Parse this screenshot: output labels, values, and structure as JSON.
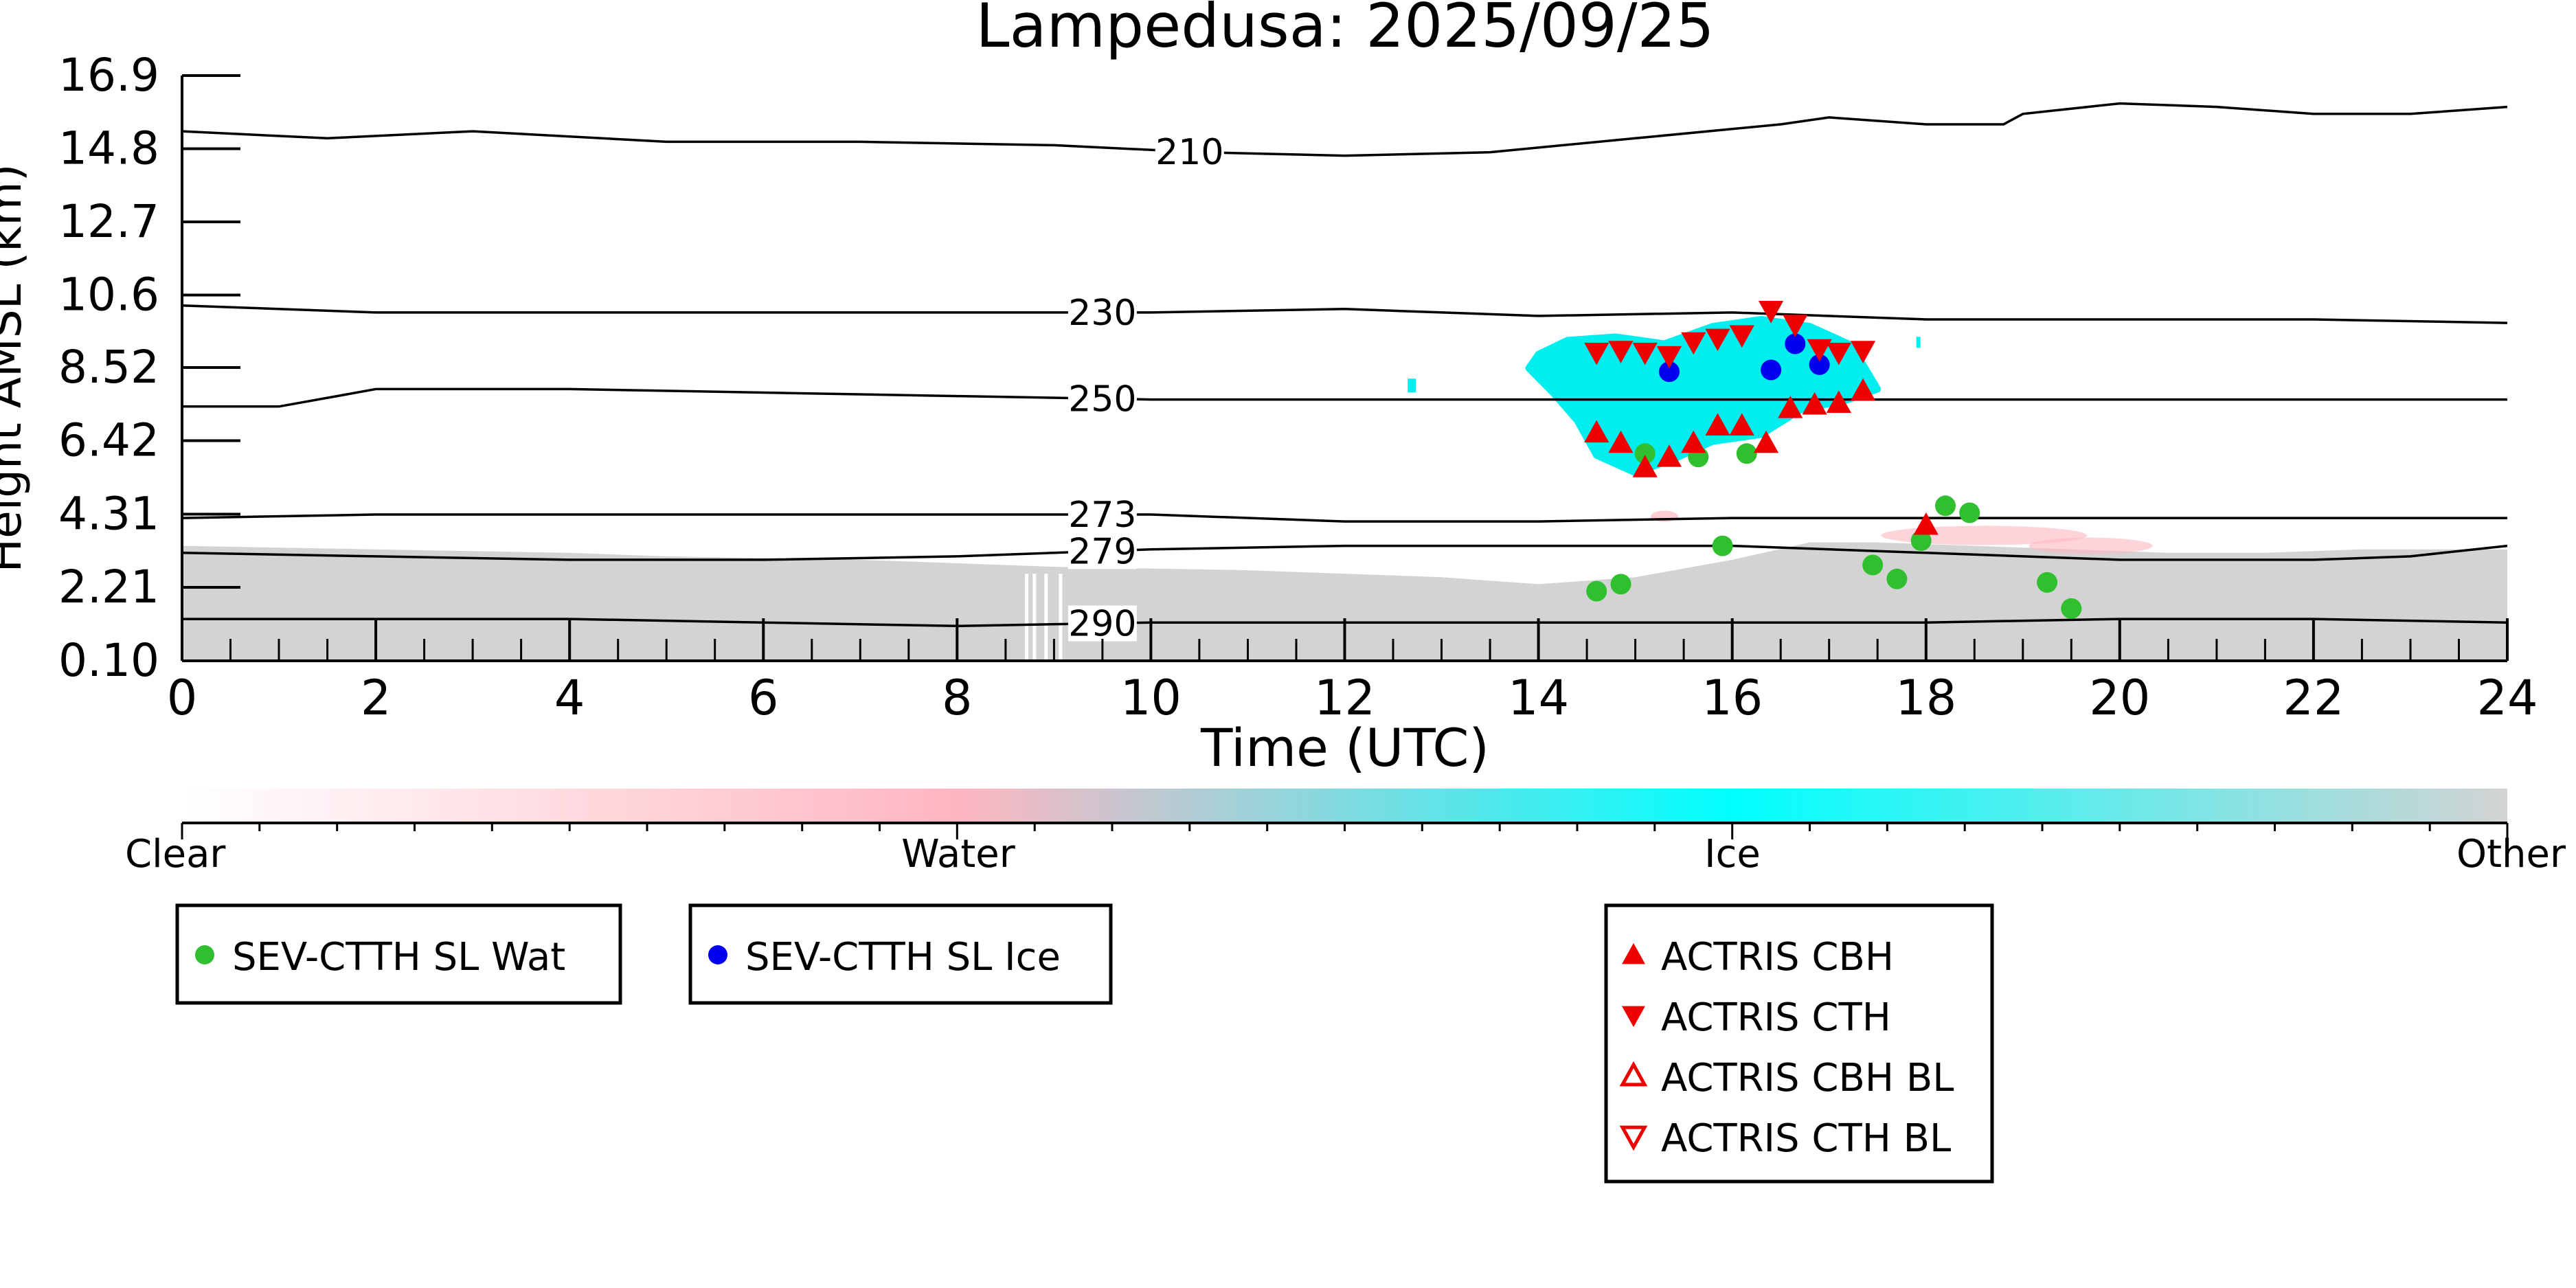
{
  "chart_data": {
    "type": "scatter",
    "title": "Lampedusa: 2025/09/25",
    "xlabel": "Time (UTC)",
    "ylabel": "Height AMSL (km)",
    "xlim": [
      0,
      24
    ],
    "ylim": [
      0.1,
      16.9
    ],
    "x_ticks": [
      "0",
      "2",
      "4",
      "6",
      "8",
      "10",
      "12",
      "14",
      "16",
      "18",
      "20",
      "22",
      "24"
    ],
    "y_ticks": [
      "0.10",
      "2.21",
      "4.31",
      "6.42",
      "8.52",
      "10.6",
      "12.7",
      "14.8",
      "16.9"
    ],
    "temperature_contours": [
      {
        "label": "210",
        "label_x": 10.4,
        "points": [
          [
            0,
            15.3
          ],
          [
            1.5,
            15.1
          ],
          [
            3,
            15.3
          ],
          [
            5,
            15.0
          ],
          [
            7,
            15.0
          ],
          [
            9,
            14.9
          ],
          [
            10.5,
            14.7
          ],
          [
            12,
            14.6
          ],
          [
            13.5,
            14.7
          ],
          [
            15,
            15.1
          ],
          [
            16.5,
            15.5
          ],
          [
            17,
            15.7
          ],
          [
            18,
            15.5
          ],
          [
            18.8,
            15.5
          ],
          [
            19,
            15.8
          ],
          [
            20,
            16.1
          ],
          [
            21,
            16.0
          ],
          [
            22,
            15.8
          ],
          [
            23,
            15.8
          ],
          [
            24,
            16.0
          ]
        ]
      },
      {
        "label": "230",
        "label_x": 9.5,
        "points": [
          [
            0,
            10.3
          ],
          [
            2,
            10.1
          ],
          [
            4,
            10.1
          ],
          [
            6,
            10.1
          ],
          [
            8,
            10.1
          ],
          [
            10,
            10.1
          ],
          [
            12,
            10.2
          ],
          [
            14,
            10.0
          ],
          [
            16,
            10.1
          ],
          [
            18,
            9.9
          ],
          [
            20,
            9.9
          ],
          [
            22,
            9.9
          ],
          [
            24,
            9.8
          ]
        ]
      },
      {
        "label": "250",
        "label_x": 9.5,
        "points": [
          [
            0,
            7.4
          ],
          [
            1,
            7.4
          ],
          [
            1.6,
            7.7
          ],
          [
            2,
            7.9
          ],
          [
            4,
            7.9
          ],
          [
            6,
            7.8
          ],
          [
            8,
            7.7
          ],
          [
            10,
            7.6
          ],
          [
            12,
            7.6
          ],
          [
            14,
            7.6
          ],
          [
            16,
            7.6
          ],
          [
            18,
            7.6
          ],
          [
            20,
            7.6
          ],
          [
            22,
            7.6
          ],
          [
            24,
            7.6
          ]
        ]
      },
      {
        "label": "273",
        "label_x": 9.5,
        "points": [
          [
            0,
            4.2
          ],
          [
            2,
            4.3
          ],
          [
            4,
            4.3
          ],
          [
            6,
            4.3
          ],
          [
            8,
            4.3
          ],
          [
            10,
            4.3
          ],
          [
            12,
            4.1
          ],
          [
            14,
            4.1
          ],
          [
            16,
            4.2
          ],
          [
            18,
            4.2
          ],
          [
            20,
            4.2
          ],
          [
            22,
            4.2
          ],
          [
            24,
            4.2
          ]
        ]
      },
      {
        "label": "279",
        "label_x": 9.5,
        "points": [
          [
            0,
            3.2
          ],
          [
            2,
            3.1
          ],
          [
            4,
            3.0
          ],
          [
            6,
            3.0
          ],
          [
            8,
            3.1
          ],
          [
            10,
            3.3
          ],
          [
            12,
            3.4
          ],
          [
            14,
            3.4
          ],
          [
            16,
            3.4
          ],
          [
            18,
            3.2
          ],
          [
            20,
            3.0
          ],
          [
            22,
            3.0
          ],
          [
            23,
            3.1
          ],
          [
            24,
            3.4
          ]
        ]
      },
      {
        "label": "290",
        "label_x": 9.5,
        "points": [
          [
            0,
            1.3
          ],
          [
            2,
            1.3
          ],
          [
            4,
            1.3
          ],
          [
            6,
            1.2
          ],
          [
            8,
            1.1
          ],
          [
            10,
            1.2
          ],
          [
            12,
            1.2
          ],
          [
            14,
            1.2
          ],
          [
            16,
            1.2
          ],
          [
            18,
            1.2
          ],
          [
            20,
            1.3
          ],
          [
            22,
            1.3
          ],
          [
            24,
            1.2
          ]
        ]
      }
    ],
    "series": [
      {
        "name": "SEV-CTTH SL Wat",
        "marker": "circle-filled",
        "color": "#2fbf2f",
        "points": [
          [
            14.6,
            2.1
          ],
          [
            14.85,
            2.3
          ],
          [
            15.1,
            6.05
          ],
          [
            15.65,
            5.95
          ],
          [
            15.9,
            3.4
          ],
          [
            16.15,
            6.05
          ],
          [
            17.45,
            2.85
          ],
          [
            17.7,
            2.45
          ],
          [
            17.95,
            3.55
          ],
          [
            18.2,
            4.55
          ],
          [
            18.45,
            4.35
          ],
          [
            19.25,
            2.35
          ],
          [
            19.5,
            1.6
          ]
        ]
      },
      {
        "name": "SEV-CTTH SL Ice",
        "marker": "circle-filled",
        "color": "#0000ee",
        "points": [
          [
            15.35,
            8.4
          ],
          [
            16.4,
            8.45
          ],
          [
            16.65,
            9.2
          ],
          [
            16.9,
            8.6
          ]
        ]
      },
      {
        "name": "ACTRIS CBH",
        "marker": "triangle-up-filled",
        "color": "#ee0000",
        "points": [
          [
            14.6,
            6.65
          ],
          [
            14.85,
            6.35
          ],
          [
            15.1,
            5.65
          ],
          [
            15.35,
            5.95
          ],
          [
            15.6,
            6.35
          ],
          [
            15.85,
            6.85
          ],
          [
            16.1,
            6.85
          ],
          [
            16.35,
            6.35
          ],
          [
            16.6,
            7.35
          ],
          [
            16.85,
            7.45
          ],
          [
            17.1,
            7.5
          ],
          [
            17.35,
            7.85
          ],
          [
            18.0,
            4.0
          ]
        ]
      },
      {
        "name": "ACTRIS CTH",
        "marker": "triangle-down-filled",
        "color": "#ee0000",
        "points": [
          [
            14.6,
            8.95
          ],
          [
            14.85,
            9.0
          ],
          [
            15.1,
            8.95
          ],
          [
            15.35,
            8.85
          ],
          [
            15.6,
            9.25
          ],
          [
            15.85,
            9.35
          ],
          [
            16.1,
            9.45
          ],
          [
            16.4,
            10.15
          ],
          [
            16.65,
            9.75
          ],
          [
            16.9,
            9.05
          ],
          [
            17.1,
            8.95
          ],
          [
            17.35,
            9.0
          ]
        ]
      },
      {
        "name": "ACTRIS CBH BL",
        "marker": "triangle-up-open",
        "color": "#ee0000",
        "points": []
      },
      {
        "name": "ACTRIS CTH BL",
        "marker": "triangle-down-open",
        "color": "#ee0000",
        "points": []
      }
    ],
    "cloud_class_colorbar": {
      "labels": [
        "Clear",
        "Water",
        "Ice",
        "Other"
      ],
      "colors": [
        "#ffffff",
        "#ffb6c1",
        "#00ffff",
        "#d3d3d3"
      ]
    }
  }
}
